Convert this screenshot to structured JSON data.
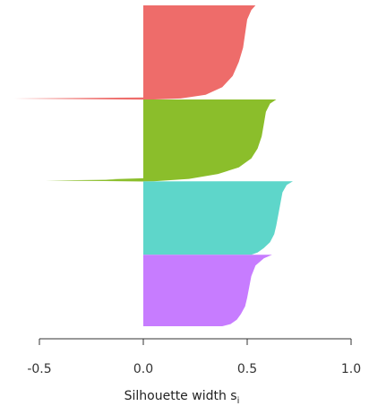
{
  "chart_data": {
    "type": "silhouette",
    "xlabel": "Silhouette width",
    "xlabel_sub": "i",
    "xlabel_prefix": "s",
    "xlim": [
      -0.5,
      1.0
    ],
    "x_ticks": [
      {
        "value": -0.5,
        "label": "-0.5"
      },
      {
        "value": 0.0,
        "label": "0.0"
      },
      {
        "value": 0.5,
        "label": "0.5"
      },
      {
        "value": 1.0,
        "label": "1.0"
      }
    ],
    "grid": false,
    "legend": "none",
    "clusters": [
      {
        "color": "#EE6C6A",
        "profile": [
          [
            0.54,
            0
          ],
          [
            0.52,
            0.05
          ],
          [
            0.5,
            0.15
          ],
          [
            0.49,
            0.3
          ],
          [
            0.48,
            0.45
          ],
          [
            0.46,
            0.6
          ],
          [
            0.43,
            0.75
          ],
          [
            0.38,
            0.87
          ],
          [
            0.3,
            0.95
          ],
          [
            0.18,
            0.99
          ],
          [
            0.05,
            1.0
          ]
        ],
        "outliers": [
          -0.62
        ]
      },
      {
        "color": "#8BBE2B",
        "profile": [
          [
            0.64,
            0
          ],
          [
            0.61,
            0.05
          ],
          [
            0.59,
            0.15
          ],
          [
            0.58,
            0.3
          ],
          [
            0.57,
            0.45
          ],
          [
            0.55,
            0.6
          ],
          [
            0.52,
            0.72
          ],
          [
            0.46,
            0.83
          ],
          [
            0.36,
            0.91
          ],
          [
            0.22,
            0.97
          ],
          [
            0.05,
            1.0
          ]
        ],
        "outliers": [
          -0.47,
          -0.18
        ]
      },
      {
        "color": "#5ED6CA",
        "profile": [
          [
            0.72,
            0
          ],
          [
            0.69,
            0.05
          ],
          [
            0.67,
            0.15
          ],
          [
            0.66,
            0.3
          ],
          [
            0.65,
            0.45
          ],
          [
            0.64,
            0.6
          ],
          [
            0.63,
            0.72
          ],
          [
            0.61,
            0.83
          ],
          [
            0.58,
            0.91
          ],
          [
            0.55,
            0.97
          ],
          [
            0.52,
            1.0
          ]
        ],
        "outliers": []
      },
      {
        "color": "#C77CFF",
        "profile": [
          [
            0.62,
            0
          ],
          [
            0.58,
            0.05
          ],
          [
            0.54,
            0.15
          ],
          [
            0.52,
            0.3
          ],
          [
            0.51,
            0.45
          ],
          [
            0.5,
            0.6
          ],
          [
            0.49,
            0.72
          ],
          [
            0.47,
            0.83
          ],
          [
            0.45,
            0.91
          ],
          [
            0.42,
            0.97
          ],
          [
            0.38,
            1.0
          ]
        ],
        "outliers": []
      }
    ]
  }
}
